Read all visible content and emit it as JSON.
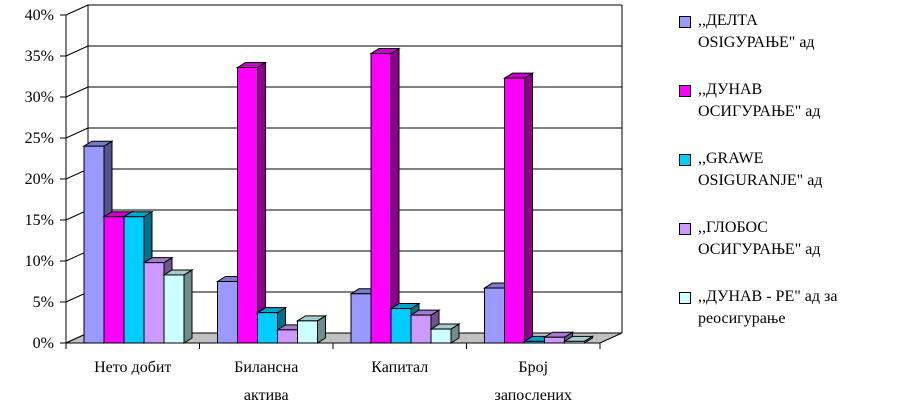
{
  "chart_data": {
    "type": "bar",
    "title": "",
    "xlabel": "",
    "ylabel": "",
    "ylim": [
      0,
      40
    ],
    "yticks": [
      "0%",
      "5%",
      "10%",
      "15%",
      "20%",
      "25%",
      "30%",
      "35%",
      "40%"
    ],
    "grid": true,
    "legend_position": "right",
    "three_d": true,
    "categories": [
      "Нето добит",
      "Билансна\nактива",
      "Капитал",
      "Број\nзапослених"
    ],
    "series": [
      {
        "name": ",,ДЕЛТА\nOSIGУРАЊЕ\" ад",
        "color": "#9999ff",
        "values": [
          24,
          7.5,
          6,
          6.7
        ]
      },
      {
        "name": ",,ДУНАВ\nОСИГУРАЊЕ\" ад",
        "color": "#ff00ff",
        "values": [
          15.4,
          33.6,
          35.3,
          32.3
        ]
      },
      {
        "name": ",,GRAWE\nOSIGURANJE\" ад",
        "color": "#00ccff",
        "values": [
          15.4,
          3.7,
          4.2,
          0.2
        ]
      },
      {
        "name": ",,ГЛОБОС\nОСИГУРАЊЕ\" ад",
        "color": "#cc99ff",
        "values": [
          9.8,
          1.6,
          3.4,
          0.7
        ]
      },
      {
        "name": ",,ДУНАВ - РЕ\" ад за\nреосигурање",
        "color": "#ccffff",
        "values": [
          8.3,
          2.7,
          1.7,
          0.2
        ]
      }
    ]
  }
}
